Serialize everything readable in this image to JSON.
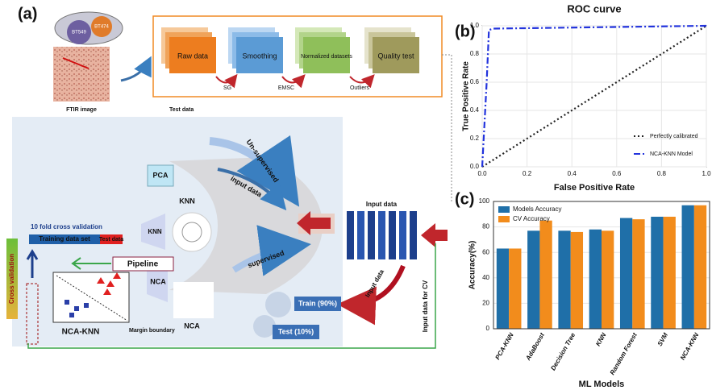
{
  "panel_labels": [
    "(a)",
    "(b)",
    "(c)"
  ],
  "top": {
    "cells": [
      "BT549",
      "BT474"
    ],
    "ftir_label": "FTIR image",
    "test_data_label": "Test data",
    "steps": [
      "Raw data",
      "Smoothing",
      "Normalized datasets",
      "Quality test"
    ],
    "methods": [
      "SG",
      "EMSC",
      "Outliers"
    ]
  },
  "workflow": {
    "pca": "PCA",
    "knn_plot_label": "KNN",
    "knn_block": "KNN",
    "nca_block": "NCA",
    "nca_plot_label": "NCA",
    "unsupervised": "Un-supervised",
    "input_data_upper": "input data",
    "supervised": "supervised",
    "input_data_block": "Input data",
    "input_data_arrow": "Input data",
    "train": "Train (90%)",
    "test": "Test (10%)",
    "cv_title": "10 fold cross validation",
    "training_set": "Training data set",
    "test_set": "Test data",
    "pipeline": "Pipeline",
    "cross_validation": "Cross validation",
    "nca_knn": "NCA-KNN",
    "margin": "Margin boundary",
    "input_cv": "Input data for CV"
  },
  "chart_data": [
    {
      "type": "line",
      "title": "ROC curve",
      "x_label": "False Positive Rate",
      "y_label": "True Positive Rate",
      "xlim": [
        0,
        1
      ],
      "ylim": [
        0,
        1
      ],
      "xticks": [
        {
          "value": 0,
          "label": "0.0"
        },
        {
          "value": 0.2,
          "label": "0.2"
        },
        {
          "value": 0.4,
          "label": "0.4"
        },
        {
          "value": 0.6,
          "label": "0.6"
        },
        {
          "value": 0.8,
          "label": "0.8"
        },
        {
          "value": 1,
          "label": "1.0"
        }
      ],
      "yticks": [
        {
          "value": 0,
          "label": "0.0"
        },
        {
          "value": 0.2,
          "label": "0.2"
        },
        {
          "value": 0.4,
          "label": "0.4"
        },
        {
          "value": 0.6,
          "label": "0.6"
        },
        {
          "value": 0.8,
          "label": "0.8"
        },
        {
          "value": 1,
          "label": "1.0"
        }
      ],
      "grid": true,
      "legend": "lower right",
      "series": [
        {
          "name": "Perfectly calibrated",
          "color": "#222222",
          "style": "dotted",
          "x": [
            0,
            1
          ],
          "values": [
            0,
            1
          ]
        },
        {
          "name": "NCA-KNN Model",
          "color": "#2233dd",
          "style": "dashdot",
          "x": [
            0,
            0.02,
            0.03,
            0.05,
            1
          ],
          "values": [
            0,
            0.6,
            0.97,
            0.98,
            1
          ]
        }
      ]
    },
    {
      "type": "bar",
      "x_label": "ML Models",
      "y_label": "Accuracy(%)",
      "categories": [
        "PCA-KNN",
        "AdaBoost",
        "Decision Tree",
        "KNN",
        "Random Forest",
        "SVM",
        "NCA-KNN"
      ],
      "ylim": [
        0,
        100
      ],
      "yticks": [
        0,
        20,
        40,
        60,
        80,
        100
      ],
      "grid": true,
      "legend": "upper left",
      "series": [
        {
          "name": "Models Accuracy",
          "color": "#1f6fa8",
          "values": [
            63,
            77,
            77,
            78,
            87,
            88,
            97
          ]
        },
        {
          "name": "CV Accuracy",
          "color": "#f28c1c",
          "values": [
            63,
            85,
            76,
            77,
            86,
            88,
            97
          ]
        }
      ]
    }
  ]
}
